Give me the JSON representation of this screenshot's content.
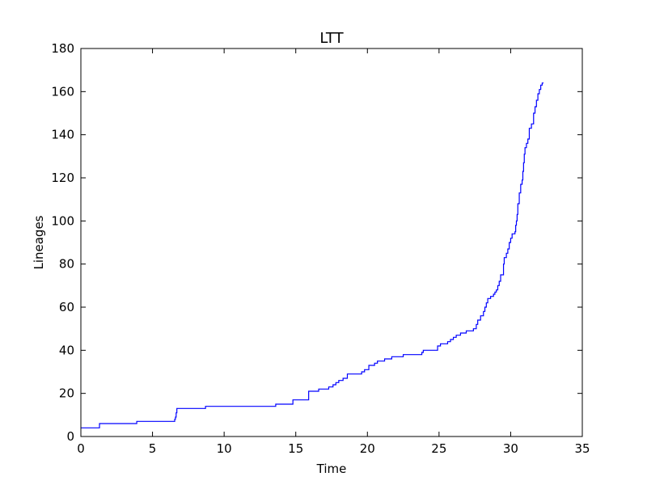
{
  "chart_data": {
    "type": "line",
    "step": true,
    "title": "LTT",
    "xlabel": "Time",
    "ylabel": "Lineages",
    "xlim": [
      0,
      35
    ],
    "ylim": [
      0,
      180
    ],
    "xticks": [
      0,
      5,
      10,
      15,
      20,
      25,
      30,
      35
    ],
    "yticks": [
      0,
      20,
      40,
      60,
      80,
      100,
      120,
      140,
      160,
      180
    ],
    "grid": false,
    "series_color": "#0000ff",
    "series": [
      {
        "points": [
          [
            0,
            4
          ],
          [
            1.3,
            6
          ],
          [
            3.9,
            7
          ],
          [
            6.55,
            8
          ],
          [
            6.6,
            9
          ],
          [
            6.65,
            11
          ],
          [
            6.7,
            13
          ],
          [
            8.7,
            14
          ],
          [
            13.6,
            15
          ],
          [
            14.8,
            17
          ],
          [
            15.9,
            21
          ],
          [
            16.6,
            22
          ],
          [
            17.3,
            23
          ],
          [
            17.6,
            24
          ],
          [
            17.8,
            25
          ],
          [
            18.0,
            26
          ],
          [
            18.3,
            27
          ],
          [
            18.6,
            29
          ],
          [
            19.6,
            30
          ],
          [
            19.8,
            31
          ],
          [
            20.1,
            33
          ],
          [
            20.5,
            34
          ],
          [
            20.7,
            35
          ],
          [
            21.2,
            36
          ],
          [
            21.7,
            37
          ],
          [
            22.5,
            38
          ],
          [
            23.8,
            39
          ],
          [
            23.9,
            40
          ],
          [
            24.9,
            42
          ],
          [
            25.1,
            43
          ],
          [
            25.6,
            44
          ],
          [
            25.8,
            45
          ],
          [
            26.0,
            46
          ],
          [
            26.2,
            47
          ],
          [
            26.5,
            48
          ],
          [
            26.9,
            49
          ],
          [
            27.4,
            50
          ],
          [
            27.6,
            52
          ],
          [
            27.7,
            54
          ],
          [
            27.9,
            56
          ],
          [
            28.1,
            58
          ],
          [
            28.2,
            60
          ],
          [
            28.3,
            62
          ],
          [
            28.4,
            64
          ],
          [
            28.6,
            65
          ],
          [
            28.8,
            66
          ],
          [
            28.9,
            67
          ],
          [
            29.0,
            68
          ],
          [
            29.1,
            70
          ],
          [
            29.2,
            72
          ],
          [
            29.3,
            75
          ],
          [
            29.5,
            80
          ],
          [
            29.55,
            83
          ],
          [
            29.7,
            85
          ],
          [
            29.8,
            87
          ],
          [
            29.9,
            90
          ],
          [
            30.0,
            92
          ],
          [
            30.1,
            94
          ],
          [
            30.3,
            95
          ],
          [
            30.35,
            98
          ],
          [
            30.4,
            100
          ],
          [
            30.45,
            103
          ],
          [
            30.5,
            108
          ],
          [
            30.6,
            113
          ],
          [
            30.7,
            117
          ],
          [
            30.8,
            119
          ],
          [
            30.85,
            123
          ],
          [
            30.9,
            127
          ],
          [
            30.95,
            131
          ],
          [
            31.0,
            134
          ],
          [
            31.1,
            136
          ],
          [
            31.2,
            138
          ],
          [
            31.3,
            143
          ],
          [
            31.45,
            145
          ],
          [
            31.6,
            150
          ],
          [
            31.7,
            153
          ],
          [
            31.8,
            156
          ],
          [
            31.9,
            159
          ],
          [
            32.0,
            161
          ],
          [
            32.1,
            163
          ],
          [
            32.2,
            164
          ],
          [
            32.3,
            164
          ]
        ]
      }
    ]
  }
}
